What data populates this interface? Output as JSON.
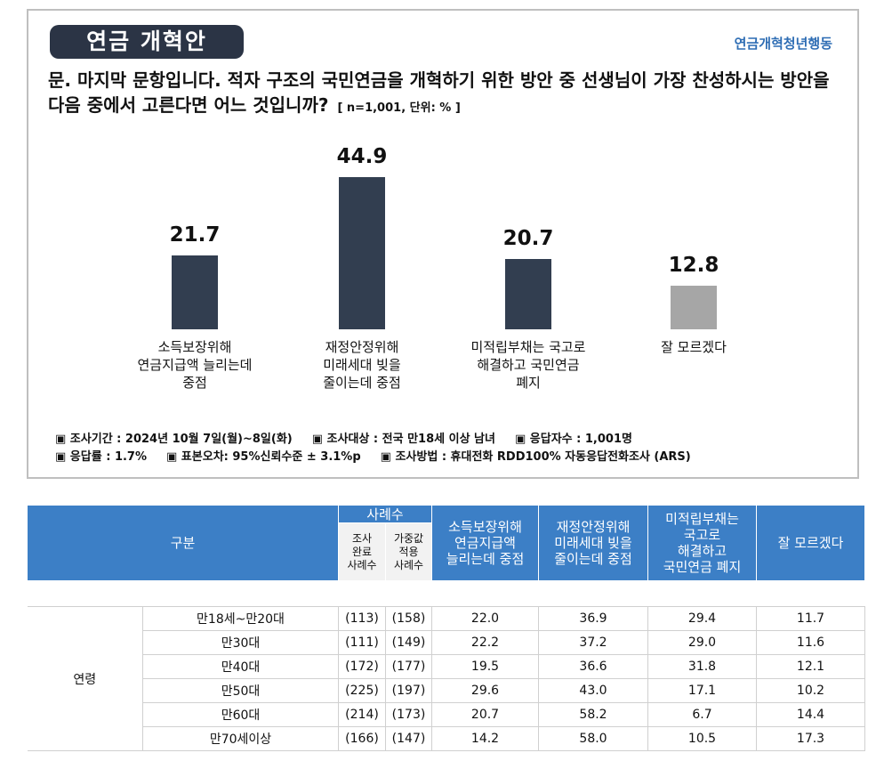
{
  "header": {
    "title": "연금 개혁안",
    "org": "연금개혁청년행동",
    "question": "문. 마지막 문항입니다. 적자 구조의 국민연금을 개혁하기 위한 방안 중 선생님이 가장 찬성하시는 방안을 다음 중에서 고른다면 어느 것입니까?",
    "note": "[ n=1,001, 단위: % ]"
  },
  "chart_data": {
    "type": "bar",
    "categories": [
      "소득보장위해\n연금지급액 늘리는데\n중점",
      "재정안정위해\n미래세대 빚을\n줄이는데 중점",
      "미적립부채는 국고로\n해결하고 국민연금\n폐지",
      "잘 모르겠다"
    ],
    "values": [
      21.7,
      44.9,
      20.7,
      12.8
    ],
    "colors": [
      "#323e50",
      "#323e50",
      "#323e50",
      "#a6a6a6"
    ],
    "ylim": [
      0,
      50
    ]
  },
  "notes": [
    "▣ 조사기간 : 2024년 10월 7일(월)~8일(화)",
    "▣ 조사대상 : 전국 만18세 이상 남녀",
    "▣ 응답자수 : 1,001명",
    "▣ 응답률 : 1.7%",
    "▣ 표본오차: 95%신뢰수준 ± 3.1%p",
    "▣ 조사방법 : 휴대전화 RDD100% 자동응답전화조사 (ARS)"
  ],
  "table": {
    "h_group": "구분",
    "h_cases": "사례수",
    "h_done": "조사\n완료\n사례수",
    "h_weighted": "가중값\n적용\n사례수",
    "h_cols": [
      "소득보장위해\n연금지급액\n늘리는데 중점",
      "재정안정위해\n미래세대 빚을\n줄이는데 중점",
      "미적립부채는\n국고로\n해결하고\n국민연금 폐지",
      "잘 모르겠다"
    ],
    "section": "연령",
    "rows": [
      {
        "label": "만18세~만20대",
        "n1": "(113)",
        "n2": "(158)",
        "v": [
          "22.0",
          "36.9",
          "29.4",
          "11.7"
        ]
      },
      {
        "label": "만30대",
        "n1": "(111)",
        "n2": "(149)",
        "v": [
          "22.2",
          "37.2",
          "29.0",
          "11.6"
        ]
      },
      {
        "label": "만40대",
        "n1": "(172)",
        "n2": "(177)",
        "v": [
          "19.5",
          "36.6",
          "31.8",
          "12.1"
        ]
      },
      {
        "label": "만50대",
        "n1": "(225)",
        "n2": "(197)",
        "v": [
          "29.6",
          "43.0",
          "17.1",
          "10.2"
        ]
      },
      {
        "label": "만60대",
        "n1": "(214)",
        "n2": "(173)",
        "v": [
          "20.7",
          "58.2",
          "6.7",
          "14.4"
        ]
      },
      {
        "label": "만70세이상",
        "n1": "(166)",
        "n2": "(147)",
        "v": [
          "14.2",
          "58.0",
          "10.5",
          "17.3"
        ]
      }
    ]
  }
}
